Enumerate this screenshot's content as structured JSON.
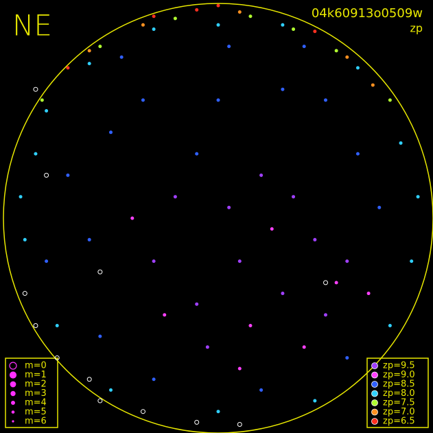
{
  "chart_data": {
    "type": "scatter",
    "label": "NE",
    "title": "04k60913o0509w",
    "subtitle": "zp",
    "xlim": [
      -1,
      1
    ],
    "ylim": [
      -1,
      1
    ],
    "horizon_color": "#e8e800",
    "size_legend": {
      "color": "#ff30ff",
      "labels": [
        "m=0",
        "m=1",
        "m=2",
        "m=3",
        "m=4",
        "m=5",
        "m=6"
      ]
    },
    "series": [
      {
        "name": "zp=9.5",
        "color": "#a040ff",
        "x": [
          0.1,
          0.3,
          -0.2,
          0.45,
          0.2,
          -0.1,
          0.5,
          0.05,
          -0.3,
          0.35,
          0.6,
          -0.05
        ],
        "y": [
          -0.2,
          -0.35,
          0.1,
          -0.1,
          0.2,
          -0.4,
          -0.45,
          0.05,
          -0.2,
          0.1,
          -0.2,
          -0.6
        ]
      },
      {
        "name": "zp=9.0",
        "color": "#ff40ff",
        "x": [
          0.15,
          0.55,
          -0.25,
          0.4,
          0.25,
          -0.4,
          0.7,
          0.1
        ],
        "y": [
          -0.5,
          -0.3,
          -0.45,
          -0.6,
          -0.05,
          0.0,
          -0.35,
          -0.7
        ]
      },
      {
        "name": "zp=8.5",
        "color": "#3060ff",
        "x": [
          -0.5,
          0.3,
          -0.6,
          0.65,
          0.0,
          -0.35,
          0.5,
          -0.7,
          -0.55,
          0.75,
          -0.1,
          0.2,
          -0.3,
          0.6,
          -0.8,
          0.05,
          -0.45,
          0.4
        ],
        "y": [
          0.4,
          0.6,
          -0.1,
          0.3,
          0.55,
          0.55,
          0.55,
          0.2,
          -0.55,
          0.05,
          0.3,
          -0.8,
          -0.75,
          -0.65,
          -0.2,
          0.8,
          0.75,
          0.8
        ]
      },
      {
        "name": "zp=8.0",
        "color": "#30d0ff",
        "x": [
          -0.85,
          -0.9,
          -0.8,
          0.85,
          0.9,
          -0.75,
          0.8,
          -0.6,
          0.65,
          0.0,
          -0.3,
          0.3,
          -0.5,
          0.45,
          0.0,
          -0.92,
          0.93
        ],
        "y": [
          0.3,
          -0.1,
          0.5,
          0.35,
          -0.2,
          -0.5,
          -0.5,
          0.72,
          0.7,
          0.9,
          0.88,
          0.9,
          -0.8,
          -0.85,
          -0.9,
          0.1,
          0.1
        ]
      },
      {
        "name": "zp=7.5",
        "color": "#b0ff30",
        "x": [
          -0.55,
          0.55,
          -0.2,
          0.15,
          0.8,
          -0.82,
          0.35
        ],
        "y": [
          0.8,
          0.78,
          0.93,
          0.94,
          0.55,
          0.55,
          0.88
        ]
      },
      {
        "name": "zp=7.0",
        "color": "#ff9020",
        "x": [
          -0.6,
          0.6,
          0.72,
          0.1,
          -0.35
        ],
        "y": [
          0.78,
          0.75,
          0.62,
          0.96,
          0.9
        ]
      },
      {
        "name": "zp=6.5",
        "color": "#ff3020",
        "x": [
          -0.7,
          -0.3,
          0.0,
          0.45,
          -0.1
        ],
        "y": [
          0.7,
          0.94,
          0.99,
          0.87,
          0.97
        ]
      }
    ],
    "unmatched": {
      "color": "#ffffff",
      "x": [
        -0.85,
        -0.75,
        -0.55,
        -0.35,
        -0.1,
        0.1,
        -0.6,
        -0.9,
        -0.8,
        -0.85,
        0.5,
        -0.55
      ],
      "y": [
        -0.5,
        -0.65,
        -0.85,
        -0.9,
        -0.95,
        -0.96,
        -0.75,
        -0.35,
        0.2,
        0.6,
        -0.3,
        -0.25
      ]
    }
  }
}
